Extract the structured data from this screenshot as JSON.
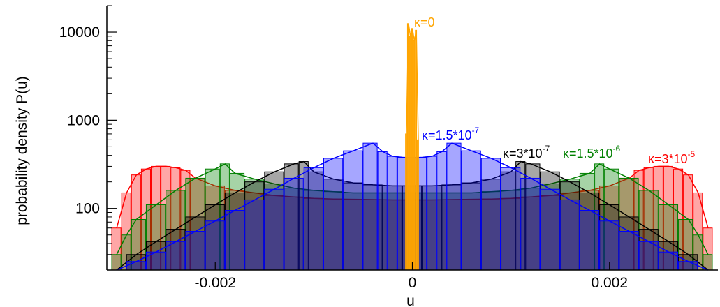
{
  "chart_data": {
    "type": "histogram",
    "xlabel": "u",
    "ylabel": "probability density P(u)",
    "xlim": [
      -0.0031,
      0.0031
    ],
    "ylim": [
      20,
      20000
    ],
    "y_scale": "log",
    "x_ticks": [
      -0.002,
      0,
      0.002
    ],
    "x_tick_labels": [
      "-0.002",
      "0",
      "0.002"
    ],
    "y_ticks": [
      100,
      1000,
      10000
    ],
    "y_tick_labels": [
      "100",
      "1000",
      "10000"
    ],
    "grid": false,
    "series": [
      {
        "name": "κ=0",
        "label_base": "κ=0",
        "label_exp": "",
        "color": "#FFA500",
        "x": [
          -6e-05,
          -4e-05,
          -2e-05,
          0,
          2e-05,
          4e-05,
          6e-05
        ],
        "values": [
          700,
          12500,
          9000,
          11000,
          8000,
          10500,
          600
        ]
      },
      {
        "name": "κ=1.5*10^-7",
        "label_base": "κ=1.5*10",
        "label_exp": "-7",
        "color": "#0000FF",
        "x": [
          -0.003,
          -0.0028,
          -0.0026,
          -0.0024,
          -0.0022,
          -0.002,
          -0.0018,
          -0.0016,
          -0.0014,
          -0.0012,
          -0.001,
          -0.0008,
          -0.0006,
          -0.0004,
          -0.0003,
          -0.0002,
          -0.0001,
          0,
          0.0001,
          0.0002,
          0.0003,
          0.0004,
          0.0006,
          0.0008,
          0.001,
          0.0012,
          0.0014,
          0.0016,
          0.0018,
          0.002,
          0.0022,
          0.0024,
          0.0026,
          0.0028,
          0.003
        ],
        "values": [
          20,
          25,
          32,
          42,
          55,
          72,
          95,
          125,
          165,
          220,
          290,
          370,
          450,
          550,
          440,
          390,
          380,
          375,
          380,
          390,
          440,
          550,
          450,
          370,
          290,
          220,
          165,
          125,
          95,
          72,
          55,
          42,
          32,
          25,
          20
        ]
      },
      {
        "name": "κ=3*10^-7",
        "label_base": "κ=3*10",
        "label_exp": "-7",
        "color": "#000000",
        "x": [
          -0.003,
          -0.0028,
          -0.0026,
          -0.0024,
          -0.0022,
          -0.002,
          -0.0018,
          -0.0016,
          -0.0014,
          -0.0012,
          -0.0011,
          -0.001,
          -0.0008,
          -0.0006,
          -0.0004,
          -0.0002,
          0,
          0.0002,
          0.0004,
          0.0006,
          0.0008,
          0.001,
          0.0011,
          0.0012,
          0.0014,
          0.0016,
          0.0018,
          0.002,
          0.0022,
          0.0024,
          0.0026,
          0.0028,
          0.003
        ],
        "values": [
          20,
          30,
          42,
          58,
          80,
          110,
          150,
          200,
          260,
          320,
          340,
          260,
          215,
          195,
          185,
          180,
          180,
          180,
          185,
          195,
          215,
          260,
          340,
          320,
          260,
          200,
          150,
          110,
          80,
          58,
          42,
          30,
          20
        ]
      },
      {
        "name": "κ=1.5*10^-6",
        "label_base": "κ=1.5*10",
        "label_exp": "-6",
        "color": "#008000",
        "x": [
          -0.003,
          -0.0029,
          -0.0028,
          -0.0026,
          -0.0024,
          -0.0022,
          -0.002,
          -0.0019,
          -0.0018,
          -0.0016,
          -0.0014,
          -0.0012,
          -0.001,
          -0.0008,
          -0.0006,
          -0.0004,
          -0.0002,
          0,
          0.0002,
          0.0004,
          0.0006,
          0.0008,
          0.001,
          0.0012,
          0.0014,
          0.0016,
          0.0018,
          0.0019,
          0.002,
          0.0022,
          0.0024,
          0.0026,
          0.0028,
          0.0029,
          0.003
        ],
        "values": [
          30,
          50,
          75,
          110,
          160,
          220,
          280,
          320,
          250,
          215,
          190,
          170,
          160,
          155,
          150,
          150,
          150,
          150,
          150,
          150,
          150,
          155,
          160,
          170,
          190,
          215,
          250,
          320,
          280,
          220,
          160,
          110,
          75,
          50,
          30
        ]
      },
      {
        "name": "κ=3*10^-5",
        "label_base": "κ=3*10",
        "label_exp": "-5",
        "color": "#FF0000",
        "x": [
          -0.003,
          -0.0029,
          -0.0028,
          -0.0027,
          -0.0026,
          -0.0025,
          -0.0024,
          -0.0023,
          -0.0022,
          -0.002,
          -0.0018,
          -0.0016,
          -0.0014,
          -0.0012,
          -0.001,
          -0.0008,
          -0.0006,
          -0.0004,
          -0.0002,
          0,
          0.0002,
          0.0004,
          0.0006,
          0.0008,
          0.001,
          0.0012,
          0.0014,
          0.0016,
          0.0018,
          0.002,
          0.0022,
          0.0023,
          0.0024,
          0.0025,
          0.0026,
          0.0027,
          0.0028,
          0.0029,
          0.003
        ],
        "values": [
          60,
          150,
          240,
          280,
          300,
          300,
          290,
          270,
          220,
          180,
          160,
          150,
          140,
          135,
          130,
          128,
          127,
          126,
          125,
          125,
          125,
          126,
          127,
          128,
          130,
          135,
          140,
          150,
          160,
          180,
          220,
          270,
          290,
          300,
          300,
          280,
          240,
          150,
          60
        ]
      }
    ]
  }
}
